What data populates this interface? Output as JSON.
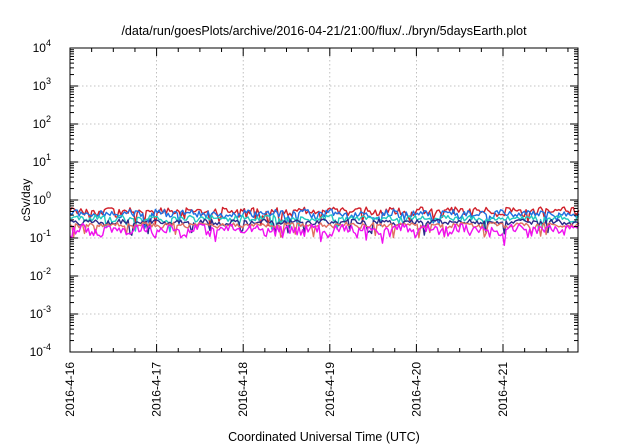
{
  "chart_data": {
    "type": "line",
    "title": "/data/run/goesPlots/archive/2016-04-21/21:00/flux/../bryn/5daysEarth.plot",
    "xlabel": "Coordinated Universal Time (UTC)",
    "ylabel": "cSv/day",
    "yscale": "log",
    "ylim": [
      0.0001,
      10000
    ],
    "xlim": [
      "2016-04-16T00:00",
      "2016-04-21T21:00"
    ],
    "grid": true,
    "x_tick_labels": [
      "2016-4-16",
      "2016-4-17",
      "2016-4-18",
      "2016-4-19",
      "2016-4-20",
      "2016-4-21"
    ],
    "y_ticks": [
      {
        "value": 0.0001,
        "base": "10",
        "exp": "-4"
      },
      {
        "value": 0.001,
        "base": "10",
        "exp": "-3"
      },
      {
        "value": 0.01,
        "base": "10",
        "exp": "-2"
      },
      {
        "value": 0.1,
        "base": "10",
        "exp": "-1"
      },
      {
        "value": 1,
        "base": "10",
        "exp": "0"
      },
      {
        "value": 10,
        "base": "10",
        "exp": "1"
      },
      {
        "value": 100,
        "base": "10",
        "exp": "2"
      },
      {
        "value": 1000,
        "base": "10",
        "exp": "3"
      },
      {
        "value": 10000,
        "base": "10",
        "exp": "4"
      }
    ],
    "series": [
      {
        "color": "#d0202a",
        "level": 0.5,
        "amplitude": 0.12
      },
      {
        "color": "#1e6fe0",
        "level": 0.44,
        "amplitude": 0.1
      },
      {
        "color": "#20c8c0",
        "level": 0.33,
        "amplitude": 0.06
      },
      {
        "color": "#2a2a8a",
        "level": 0.26,
        "amplitude": 0.04
      },
      {
        "color": "#e07060",
        "level": 0.22,
        "amplitude": 0.03
      },
      {
        "color": "#f010f0",
        "level": 0.17,
        "amplitude": 0.05
      }
    ]
  }
}
